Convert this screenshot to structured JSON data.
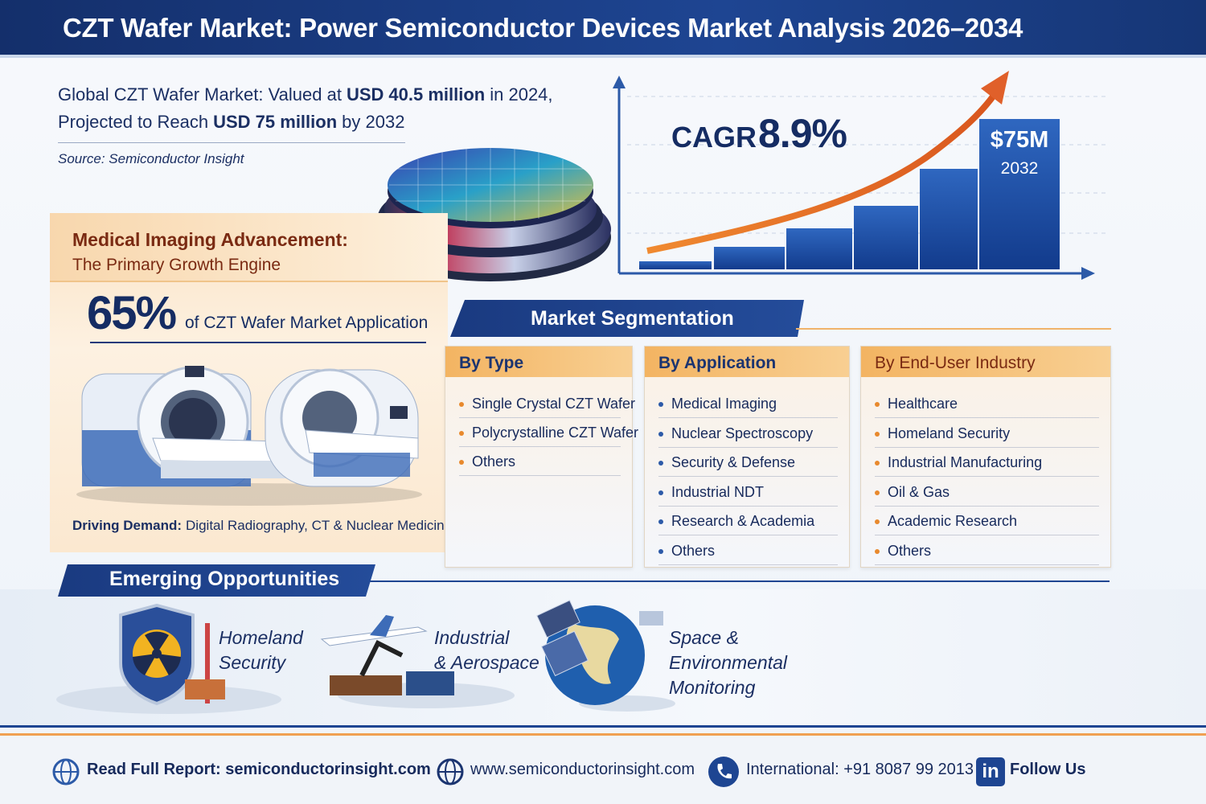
{
  "header": {
    "title": "CZT Wafer Market: Power Semiconductor Devices Market Analysis 2026–2034"
  },
  "intro": {
    "line1": [
      "Global CZT Wafer Market: Valued at",
      "USD",
      "40.5 million",
      "in 2024,"
    ],
    "line2": [
      "Projected to Reach",
      "USD 75 million",
      "by 2032"
    ],
    "source": "Source: Semiconductor Insight"
  },
  "growth": {
    "cagr_label": "CAGR",
    "cagr_value": "8.9%",
    "callout_value": "$75M",
    "callout_year": "2032"
  },
  "medical": {
    "title": "Medical Imaging Advancement:",
    "subtitle": "The Primary Growth Engine",
    "share": "65%",
    "share_text": "of CZT Wafer Market Application",
    "driving_label": "Driving Demand:",
    "driving_text": "Digital Radiography, CT & Nuclear Medicine"
  },
  "segmentation": {
    "title": "Market Segmentation",
    "columns": [
      {
        "heading": "By Type",
        "items": [
          "Single Crystal CZT Wafer",
          "Polycrystalline CZT Wafer",
          "Others"
        ]
      },
      {
        "heading": "By Application",
        "items": [
          "Medical Imaging",
          "Nuclear Spectroscopy",
          "Security & Defense",
          "Industrial NDT",
          "Research & Academia",
          "Others"
        ]
      },
      {
        "heading": "By End-User Industry",
        "items": [
          "Healthcare",
          "Homeland Security",
          "Industrial Manufacturing",
          "Oil & Gas",
          "Academic Research",
          "Others"
        ]
      }
    ]
  },
  "opportunities": {
    "title": "Emerging Opportunities",
    "items": [
      {
        "lines": [
          "Homeland",
          "Security"
        ]
      },
      {
        "lines": [
          "Industrial",
          "& Aerospace"
        ]
      },
      {
        "lines": [
          "Space &",
          "Environmental",
          "Monitoring"
        ]
      }
    ]
  },
  "footer": {
    "report": "Read Full Report: semiconductorinsight.com",
    "website": "www.semiconductorinsight.com",
    "phone": "International: +91 8087 99 2013",
    "linkedin_icon": "in",
    "follow": "Follow Us"
  }
}
